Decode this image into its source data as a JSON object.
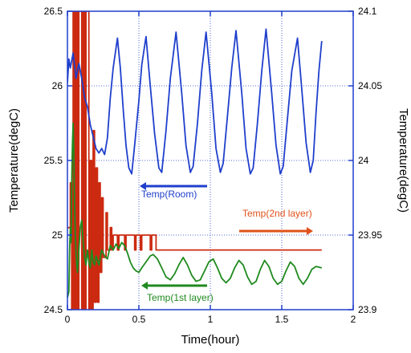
{
  "chart_data": {
    "type": "line",
    "title": "",
    "xlabel": "Time(hour)",
    "ylabel_left": "Temperature(degC)",
    "ylabel_right": "Temperature(degC)",
    "xlim": [
      0,
      2
    ],
    "ylim_left": [
      24.5,
      26.5
    ],
    "ylim_right": [
      23.9,
      24.1
    ],
    "grid": true,
    "x_ticks": [
      "0",
      "0.5",
      "1",
      "1.5",
      "2"
    ],
    "y_left_ticks": [
      "24.5",
      "25",
      "25.5",
      "26",
      "26.5"
    ],
    "y_right_ticks": [
      "23.9",
      "23.95",
      "24",
      "24.05",
      "24.1"
    ],
    "colors": {
      "room": "#1f3fcc",
      "second_layer": "#cc2a10",
      "first_layer": "#1f8a1f",
      "arrow_orange": "#e0521a",
      "axis": "#1f3fcc",
      "grid": "#1f3fcc"
    },
    "series": [
      {
        "name": "Temp(Room)",
        "axis": "left",
        "points": [
          [
            0.0,
            26.02
          ],
          [
            0.01,
            26.18
          ],
          [
            0.02,
            26.12
          ],
          [
            0.04,
            26.22
          ],
          [
            0.06,
            26.05
          ],
          [
            0.08,
            26.15
          ],
          [
            0.1,
            26.05
          ],
          [
            0.12,
            25.92
          ],
          [
            0.14,
            25.86
          ],
          [
            0.16,
            25.74
          ],
          [
            0.18,
            25.66
          ],
          [
            0.2,
            25.58
          ],
          [
            0.22,
            25.55
          ],
          [
            0.24,
            25.58
          ],
          [
            0.26,
            25.54
          ],
          [
            0.28,
            25.65
          ],
          [
            0.3,
            25.92
          ],
          [
            0.32,
            26.12
          ],
          [
            0.35,
            26.32
          ],
          [
            0.37,
            26.12
          ],
          [
            0.39,
            25.85
          ],
          [
            0.41,
            25.6
          ],
          [
            0.43,
            25.45
          ],
          [
            0.45,
            25.41
          ],
          [
            0.47,
            25.6
          ],
          [
            0.5,
            25.9
          ],
          [
            0.52,
            26.14
          ],
          [
            0.55,
            26.33
          ],
          [
            0.58,
            26.0
          ],
          [
            0.61,
            25.68
          ],
          [
            0.64,
            25.45
          ],
          [
            0.66,
            25.42
          ],
          [
            0.69,
            25.7
          ],
          [
            0.72,
            26.05
          ],
          [
            0.76,
            26.36
          ],
          [
            0.8,
            25.95
          ],
          [
            0.83,
            25.6
          ],
          [
            0.86,
            25.42
          ],
          [
            0.88,
            25.46
          ],
          [
            0.91,
            25.75
          ],
          [
            0.94,
            26.1
          ],
          [
            0.97,
            26.36
          ],
          [
            1.01,
            25.95
          ],
          [
            1.04,
            25.58
          ],
          [
            1.07,
            25.42
          ],
          [
            1.09,
            25.48
          ],
          [
            1.12,
            25.8
          ],
          [
            1.15,
            26.12
          ],
          [
            1.18,
            26.37
          ],
          [
            1.22,
            25.95
          ],
          [
            1.25,
            25.58
          ],
          [
            1.28,
            25.41
          ],
          [
            1.3,
            25.45
          ],
          [
            1.33,
            25.75
          ],
          [
            1.36,
            26.1
          ],
          [
            1.39,
            26.38
          ],
          [
            1.43,
            25.95
          ],
          [
            1.46,
            25.6
          ],
          [
            1.49,
            25.41
          ],
          [
            1.51,
            25.46
          ],
          [
            1.54,
            25.78
          ],
          [
            1.57,
            26.1
          ],
          [
            1.61,
            26.32
          ],
          [
            1.64,
            25.98
          ],
          [
            1.67,
            25.62
          ],
          [
            1.7,
            25.42
          ],
          [
            1.72,
            25.5
          ],
          [
            1.74,
            25.82
          ],
          [
            1.76,
            26.1
          ],
          [
            1.78,
            26.3
          ]
        ]
      },
      {
        "name": "Temp(2nd layer)",
        "axis": "right",
        "points": [
          [
            0.0,
            23.955
          ],
          [
            0.02,
            23.955
          ],
          [
            0.02,
            23.985
          ],
          [
            0.03,
            23.985
          ],
          [
            0.03,
            23.9
          ],
          [
            0.04,
            23.9
          ],
          [
            0.04,
            24.1
          ],
          [
            0.05,
            24.1
          ],
          [
            0.05,
            23.9
          ],
          [
            0.06,
            23.9
          ],
          [
            0.06,
            24.1
          ],
          [
            0.07,
            24.1
          ],
          [
            0.07,
            23.9
          ],
          [
            0.08,
            23.9
          ],
          [
            0.08,
            24.1
          ],
          [
            0.1,
            24.1
          ],
          [
            0.1,
            23.9
          ],
          [
            0.11,
            23.9
          ],
          [
            0.11,
            24.1
          ],
          [
            0.12,
            24.1
          ],
          [
            0.12,
            23.9
          ],
          [
            0.13,
            23.9
          ],
          [
            0.13,
            24.1
          ],
          [
            0.15,
            24.1
          ],
          [
            0.15,
            23.9
          ],
          [
            0.16,
            23.9
          ],
          [
            0.16,
            24.0
          ],
          [
            0.17,
            24.0
          ],
          [
            0.17,
            23.9
          ],
          [
            0.18,
            23.9
          ],
          [
            0.18,
            24.02
          ],
          [
            0.19,
            24.02
          ],
          [
            0.19,
            23.905
          ],
          [
            0.2,
            23.905
          ],
          [
            0.2,
            23.995
          ],
          [
            0.21,
            23.995
          ],
          [
            0.21,
            23.905
          ],
          [
            0.22,
            23.905
          ],
          [
            0.22,
            23.985
          ],
          [
            0.23,
            23.985
          ],
          [
            0.23,
            23.925
          ],
          [
            0.24,
            23.925
          ],
          [
            0.24,
            23.975
          ],
          [
            0.25,
            23.975
          ],
          [
            0.25,
            23.935
          ],
          [
            0.27,
            23.935
          ],
          [
            0.27,
            23.965
          ],
          [
            0.28,
            23.965
          ],
          [
            0.28,
            23.94
          ],
          [
            0.3,
            23.94
          ],
          [
            0.3,
            23.955
          ],
          [
            0.31,
            23.955
          ],
          [
            0.31,
            23.94
          ],
          [
            0.32,
            23.94
          ],
          [
            0.32,
            23.95
          ],
          [
            0.35,
            23.95
          ],
          [
            0.35,
            23.94
          ],
          [
            0.36,
            23.94
          ],
          [
            0.36,
            23.95
          ],
          [
            0.4,
            23.95
          ],
          [
            0.4,
            23.94
          ],
          [
            0.41,
            23.94
          ],
          [
            0.41,
            23.95
          ],
          [
            0.47,
            23.95
          ],
          [
            0.47,
            23.94
          ],
          [
            0.48,
            23.94
          ],
          [
            0.48,
            23.95
          ],
          [
            0.51,
            23.95
          ],
          [
            0.51,
            23.94
          ],
          [
            0.52,
            23.94
          ],
          [
            0.52,
            23.95
          ],
          [
            0.58,
            23.95
          ],
          [
            0.58,
            23.94
          ],
          [
            0.59,
            23.94
          ],
          [
            0.59,
            23.95
          ],
          [
            0.62,
            23.95
          ],
          [
            0.62,
            23.94
          ],
          [
            1.78,
            23.94
          ]
        ]
      },
      {
        "name": "Temp(1st layer)",
        "axis": "left",
        "points": [
          [
            0.0,
            24.58
          ],
          [
            0.01,
            24.62
          ],
          [
            0.015,
            24.9
          ],
          [
            0.02,
            25.05
          ],
          [
            0.025,
            24.95
          ],
          [
            0.03,
            25.35
          ],
          [
            0.035,
            25.6
          ],
          [
            0.04,
            25.75
          ],
          [
            0.045,
            25.55
          ],
          [
            0.05,
            25.2
          ],
          [
            0.055,
            25.0
          ],
          [
            0.06,
            24.88
          ],
          [
            0.065,
            24.8
          ],
          [
            0.07,
            24.75
          ],
          [
            0.08,
            24.9
          ],
          [
            0.09,
            25.05
          ],
          [
            0.1,
            25.1
          ],
          [
            0.11,
            24.95
          ],
          [
            0.12,
            24.85
          ],
          [
            0.13,
            24.8
          ],
          [
            0.14,
            24.9
          ],
          [
            0.15,
            24.82
          ],
          [
            0.16,
            24.78
          ],
          [
            0.17,
            24.9
          ],
          [
            0.18,
            24.82
          ],
          [
            0.19,
            24.8
          ],
          [
            0.2,
            24.86
          ],
          [
            0.22,
            24.8
          ],
          [
            0.24,
            24.9
          ],
          [
            0.26,
            24.86
          ],
          [
            0.28,
            24.84
          ],
          [
            0.3,
            24.93
          ],
          [
            0.32,
            24.9
          ],
          [
            0.34,
            24.94
          ],
          [
            0.36,
            24.91
          ],
          [
            0.38,
            24.95
          ],
          [
            0.4,
            24.93
          ],
          [
            0.42,
            24.88
          ],
          [
            0.44,
            24.82
          ],
          [
            0.46,
            24.78
          ],
          [
            0.48,
            24.76
          ],
          [
            0.5,
            24.75
          ],
          [
            0.52,
            24.78
          ],
          [
            0.55,
            24.82
          ],
          [
            0.58,
            24.86
          ],
          [
            0.6,
            24.87
          ],
          [
            0.63,
            24.84
          ],
          [
            0.66,
            24.78
          ],
          [
            0.69,
            24.72
          ],
          [
            0.72,
            24.7
          ],
          [
            0.75,
            24.74
          ],
          [
            0.78,
            24.8
          ],
          [
            0.81,
            24.85
          ],
          [
            0.84,
            24.8
          ],
          [
            0.87,
            24.73
          ],
          [
            0.9,
            24.69
          ],
          [
            0.93,
            24.7
          ],
          [
            0.96,
            24.76
          ],
          [
            0.99,
            24.82
          ],
          [
            1.02,
            24.84
          ],
          [
            1.05,
            24.78
          ],
          [
            1.08,
            24.71
          ],
          [
            1.11,
            24.68
          ],
          [
            1.14,
            24.71
          ],
          [
            1.17,
            24.78
          ],
          [
            1.2,
            24.83
          ],
          [
            1.23,
            24.8
          ],
          [
            1.26,
            24.72
          ],
          [
            1.29,
            24.67
          ],
          [
            1.32,
            24.69
          ],
          [
            1.35,
            24.77
          ],
          [
            1.38,
            24.83
          ],
          [
            1.41,
            24.79
          ],
          [
            1.44,
            24.71
          ],
          [
            1.47,
            24.67
          ],
          [
            1.5,
            24.69
          ],
          [
            1.53,
            24.76
          ],
          [
            1.56,
            24.82
          ],
          [
            1.59,
            24.79
          ],
          [
            1.62,
            24.71
          ],
          [
            1.65,
            24.67
          ],
          [
            1.68,
            24.71
          ],
          [
            1.71,
            24.77
          ],
          [
            1.74,
            24.79
          ],
          [
            1.78,
            24.78
          ]
        ]
      }
    ],
    "annotations": [
      {
        "text": "Temp(Room)",
        "color": "#1f3fcc",
        "arrow": "left"
      },
      {
        "text": "Temp(2nd layer)",
        "color": "#e0521a",
        "arrow": "right"
      },
      {
        "text": "Temp(1st layer)",
        "color": "#1f8a1f",
        "arrow": "left"
      }
    ]
  }
}
